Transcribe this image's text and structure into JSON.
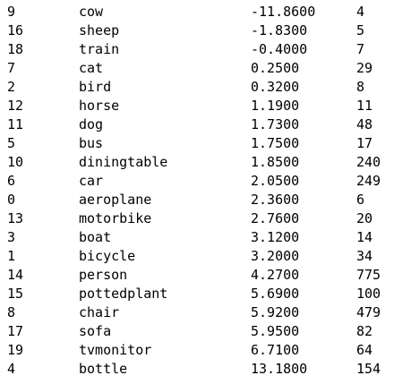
{
  "rows": [
    {
      "id": "9",
      "name": "cow",
      "value": "-11.8600",
      "count": "4"
    },
    {
      "id": "16",
      "name": "sheep",
      "value": "-1.8300",
      "count": "5"
    },
    {
      "id": "18",
      "name": "train",
      "value": "-0.4000",
      "count": "7"
    },
    {
      "id": "7",
      "name": "cat",
      "value": "0.2500",
      "count": "29"
    },
    {
      "id": "2",
      "name": "bird",
      "value": "0.3200",
      "count": "8"
    },
    {
      "id": "12",
      "name": "horse",
      "value": "1.1900",
      "count": "11"
    },
    {
      "id": "11",
      "name": "dog",
      "value": "1.7300",
      "count": "48"
    },
    {
      "id": "5",
      "name": "bus",
      "value": "1.7500",
      "count": "17"
    },
    {
      "id": "10",
      "name": "diningtable",
      "value": "1.8500",
      "count": "240"
    },
    {
      "id": "6",
      "name": "car",
      "value": "2.0500",
      "count": "249"
    },
    {
      "id": "0",
      "name": "aeroplane",
      "value": "2.3600",
      "count": "6"
    },
    {
      "id": "13",
      "name": "motorbike",
      "value": "2.7600",
      "count": "20"
    },
    {
      "id": "3",
      "name": "boat",
      "value": "3.1200",
      "count": "14"
    },
    {
      "id": "1",
      "name": "bicycle",
      "value": "3.2000",
      "count": "34"
    },
    {
      "id": "14",
      "name": "person",
      "value": "4.2700",
      "count": "775"
    },
    {
      "id": "15",
      "name": "pottedplant",
      "value": "5.6900",
      "count": "100"
    },
    {
      "id": "8",
      "name": "chair",
      "value": "5.9200",
      "count": "479"
    },
    {
      "id": "17",
      "name": "sofa",
      "value": "5.9500",
      "count": "82"
    },
    {
      "id": "19",
      "name": "tvmonitor",
      "value": "6.7100",
      "count": "64"
    },
    {
      "id": "4",
      "name": "bottle",
      "value": "13.1800",
      "count": "154"
    }
  ]
}
